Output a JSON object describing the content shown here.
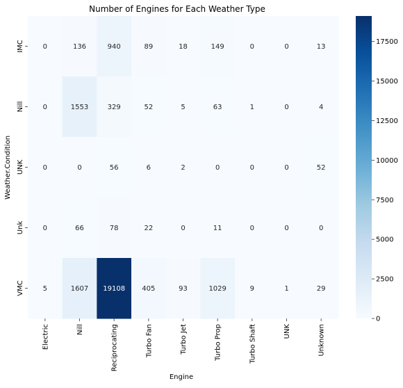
{
  "chart_data": {
    "type": "heatmap",
    "title": "Number of Engines for Each Weather Type",
    "xlabel": "Engine",
    "ylabel": "Weather.Condition",
    "x_categories": [
      "Electric",
      "Nill",
      "Reciprocating",
      "Turbo Fan",
      "Turbo Jet",
      "Turbo Prop",
      "Turbo Shaft",
      "UNK",
      "Unknown"
    ],
    "y_categories": [
      "IMC",
      "Nill",
      "UNK",
      "Unk",
      "VMC"
    ],
    "values": [
      [
        0,
        136,
        940,
        89,
        18,
        149,
        0,
        0,
        13
      ],
      [
        0,
        1553,
        329,
        52,
        5,
        63,
        1,
        0,
        4
      ],
      [
        0,
        0,
        56,
        6,
        2,
        0,
        0,
        0,
        52
      ],
      [
        0,
        66,
        78,
        22,
        0,
        11,
        0,
        0,
        0
      ],
      [
        5,
        1607,
        19108,
        405,
        93,
        1029,
        9,
        1,
        29
      ]
    ],
    "colormap": "Blues",
    "color_min": "#f7fbff",
    "color_max": "#08306b",
    "vmin": 0,
    "vmax": 19108,
    "colorbar_ticks": [
      0,
      2500,
      5000,
      7500,
      10000,
      12500,
      15000,
      17500
    ],
    "annotations": true
  }
}
